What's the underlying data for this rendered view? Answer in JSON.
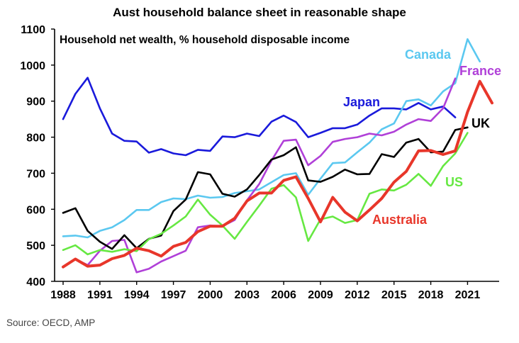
{
  "chart_data": {
    "type": "line",
    "title": "Aust household balance sheet in reasonable shape",
    "subtitle": "Household net wealth, % household disposable income",
    "xlabel": "",
    "ylabel": "",
    "ylim": [
      400,
      1100
    ],
    "yticks": [
      400,
      500,
      600,
      700,
      800,
      900,
      1000,
      1100
    ],
    "xlim": [
      1988,
      2023
    ],
    "xticks": [
      1988,
      1991,
      1994,
      1997,
      2000,
      2003,
      2006,
      2009,
      2012,
      2015,
      2018,
      2021
    ],
    "grid": false,
    "source": "Source: OECD, AMP",
    "series": [
      {
        "name": "Japan",
        "color": "#1a1adb",
        "x": [
          1988,
          1989,
          1990,
          1991,
          1992,
          1993,
          1994,
          1995,
          1996,
          1997,
          1998,
          1999,
          2000,
          2001,
          2002,
          2003,
          2004,
          2005,
          2006,
          2007,
          2008,
          2009,
          2010,
          2011,
          2012,
          2013,
          2014,
          2015,
          2016,
          2017,
          2018,
          2019,
          2020
        ],
        "values": [
          850,
          920,
          965,
          880,
          810,
          790,
          788,
          757,
          767,
          755,
          750,
          765,
          762,
          802,
          800,
          810,
          803,
          843,
          860,
          842,
          800,
          812,
          825,
          825,
          835,
          860,
          880,
          880,
          877,
          895,
          877,
          885,
          855
        ]
      },
      {
        "name": "Canada",
        "color": "#5bc8f0",
        "x": [
          1988,
          1989,
          1990,
          1991,
          1992,
          1993,
          1994,
          1995,
          1996,
          1997,
          1998,
          1999,
          2000,
          2001,
          2002,
          2003,
          2004,
          2005,
          2006,
          2007,
          2008,
          2009,
          2010,
          2011,
          2012,
          2013,
          2014,
          2015,
          2016,
          2017,
          2018,
          2019,
          2020,
          2021,
          2022
        ],
        "values": [
          525,
          527,
          522,
          540,
          550,
          570,
          598,
          598,
          620,
          630,
          628,
          638,
          632,
          634,
          645,
          650,
          655,
          675,
          695,
          700,
          640,
          685,
          728,
          730,
          758,
          785,
          822,
          838,
          900,
          905,
          888,
          927,
          950,
          1072,
          1010
        ]
      },
      {
        "name": "France",
        "color": "#b040d8",
        "x": [
          1988,
          1989,
          1990,
          1991,
          1992,
          1993,
          1994,
          1995,
          1996,
          1997,
          1998,
          1999,
          2000,
          2001,
          2002,
          2003,
          2004,
          2005,
          2006,
          2007,
          2008,
          2009,
          2010,
          2011,
          2012,
          2013,
          2014,
          2015,
          2016,
          2017,
          2018,
          2019,
          2020
        ],
        "values": [
          440,
          462,
          445,
          485,
          512,
          515,
          425,
          435,
          455,
          470,
          485,
          550,
          555,
          553,
          570,
          625,
          670,
          735,
          790,
          793,
          722,
          748,
          787,
          795,
          800,
          810,
          805,
          815,
          835,
          850,
          845,
          880,
          963
        ]
      },
      {
        "name": "UK",
        "color": "#000000",
        "x": [
          1988,
          1989,
          1990,
          1991,
          1992,
          1993,
          1994,
          1995,
          1996,
          1997,
          1998,
          1999,
          2000,
          2001,
          2002,
          2003,
          2004,
          2005,
          2006,
          2007,
          2008,
          2009,
          2010,
          2011,
          2012,
          2013,
          2014,
          2015,
          2016,
          2017,
          2018,
          2019,
          2020,
          2021
        ],
        "values": [
          590,
          603,
          540,
          510,
          490,
          528,
          492,
          518,
          527,
          595,
          627,
          703,
          697,
          643,
          635,
          655,
          695,
          738,
          750,
          772,
          680,
          676,
          690,
          710,
          697,
          698,
          753,
          745,
          785,
          795,
          758,
          760,
          820,
          827
        ]
      },
      {
        "name": "US",
        "color": "#66e842",
        "x": [
          1988,
          1989,
          1990,
          1991,
          1992,
          1993,
          1994,
          1995,
          1996,
          1997,
          1998,
          1999,
          2000,
          2001,
          2002,
          2003,
          2004,
          2005,
          2006,
          2007,
          2008,
          2009,
          2010,
          2011,
          2012,
          2013,
          2014,
          2015,
          2016,
          2017,
          2018,
          2019,
          2020,
          2021
        ],
        "values": [
          487,
          500,
          475,
          487,
          482,
          489,
          484,
          517,
          532,
          555,
          580,
          627,
          585,
          555,
          518,
          565,
          610,
          657,
          667,
          633,
          512,
          572,
          580,
          562,
          570,
          643,
          655,
          652,
          668,
          698,
          665,
          720,
          755,
          812
        ]
      },
      {
        "name": "Australia",
        "color": "#e8362a",
        "x": [
          1988,
          1989,
          1990,
          1991,
          1992,
          1993,
          1994,
          1995,
          1996,
          1997,
          1998,
          1999,
          2000,
          2001,
          2002,
          2003,
          2004,
          2005,
          2006,
          2007,
          2008,
          2009,
          2010,
          2011,
          2012,
          2013,
          2014,
          2015,
          2016,
          2017,
          2018,
          2019,
          2020,
          2021,
          2022,
          2023
        ],
        "values": [
          440,
          462,
          442,
          445,
          463,
          472,
          492,
          485,
          470,
          497,
          508,
          538,
          553,
          553,
          575,
          623,
          645,
          645,
          680,
          690,
          630,
          565,
          633,
          592,
          568,
          598,
          630,
          675,
          705,
          762,
          763,
          752,
          762,
          870,
          955,
          895
        ]
      }
    ]
  }
}
